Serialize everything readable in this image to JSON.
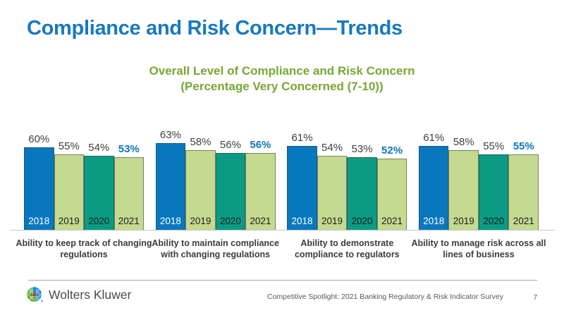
{
  "slide": {
    "title": "Compliance and Risk Concern—Trends",
    "subtitle_line1": "Overall Level of Compliance and Risk Concern",
    "subtitle_line2": "(Percentage Very Concerned (7-10))",
    "footer_text": "Competitive Spotlight:  2021 Banking Regulatory & Risk Indicator Survey",
    "page_number": "7",
    "logo_text": "Wolters Kluwer",
    "logo_icon": "wolters-kluwer-mosaic-globe-icon"
  },
  "colors": {
    "title_blue": "#1879BF",
    "subtitle_green": "#76A833",
    "series": [
      "#0778BE",
      "#C3DA90",
      "#0B9B84",
      "#C3DA90"
    ],
    "year_text": [
      "#FFFFFF",
      "#1d1d1d",
      "#0e201c",
      "#1d1d1d"
    ],
    "value_label": "#3F3F3F",
    "highlight_value": "#0F76BC",
    "axis_line": "#C6C6C6",
    "category_label": "#3C3C3C",
    "footer_text": "#595959"
  },
  "chart_data": {
    "type": "bar",
    "title": "Overall Level of Compliance and Risk Concern",
    "subtitle": "(Percentage Very Concerned (7-10))",
    "categories": [
      "Ability to keep track of changing regulations",
      "Ability to maintain compliance with changing regulations",
      "Ability to demonstrate compliance to regulators",
      "Ability to manage risk across all lines of business"
    ],
    "categories_wrapped": [
      "Ability to keep track of changing\nregulations",
      "Ability to maintain compliance\nwith changing regulations",
      "Ability to demonstrate\ncompliance to regulators",
      "Ability to manage risk across all\nlines of business"
    ],
    "series": [
      {
        "name": "2018",
        "values": [
          60,
          63,
          61,
          61
        ]
      },
      {
        "name": "2019",
        "values": [
          55,
          58,
          54,
          58
        ]
      },
      {
        "name": "2020",
        "values": [
          54,
          56,
          53,
          55
        ]
      },
      {
        "name": "2021",
        "values": [
          53,
          56,
          52,
          55
        ]
      }
    ],
    "value_suffix": "%",
    "highlight_series": "2021",
    "ylim": [
      0,
      100
    ],
    "grid": false,
    "legend": "years shown inside bar bases"
  }
}
